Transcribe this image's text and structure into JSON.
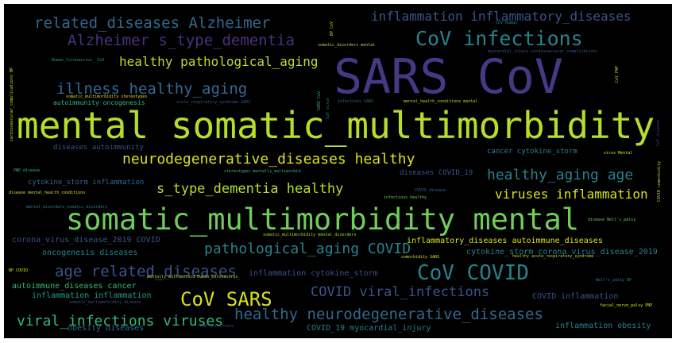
{
  "palette": {
    "purple": "#443a83",
    "violet": "#46327e",
    "indigo": "#3b528b",
    "blue": "#31688e",
    "teal": "#26828e",
    "teal2": "#1f9e89",
    "green": "#35b779",
    "lime": "#6ece58",
    "yellowgreen": "#b5de2b",
    "yellow": "#d8e219",
    "gray": "#3a4e6a"
  },
  "words": [
    {
      "text": "SARS CoV"
    },
    {
      "text": "mental somatic_multimorbidity"
    },
    {
      "text": "somatic_multimorbidity mental"
    },
    {
      "text": "CoV infections"
    },
    {
      "text": "related_diseases Alzheimer"
    },
    {
      "text": "inflammation inflammatory_diseases"
    },
    {
      "text": "Alzheimer s_type_dementia"
    },
    {
      "text": "healthy pathological_aging"
    },
    {
      "text": "illness healthy_aging"
    },
    {
      "text": "neurodegenerative_diseases healthy"
    },
    {
      "text": "healthy_aging age"
    },
    {
      "text": "s_type_dementia healthy"
    },
    {
      "text": "viruses inflammation"
    },
    {
      "text": "pathological_aging COVID"
    },
    {
      "text": "age related_diseases"
    },
    {
      "text": "CoV COVID"
    },
    {
      "text": "CoV SARS"
    },
    {
      "text": "COVID viral_infections"
    },
    {
      "text": "healthy neurodegenerative_diseases"
    },
    {
      "text": "viral_infections viruses"
    },
    {
      "text": "inflammatory_diseases autoimmune_diseases"
    },
    {
      "text": "cytokine_storm corona_virus_disease_2019"
    },
    {
      "text": "autoimmune_diseases cancer"
    },
    {
      "text": "inflammation inflammation"
    },
    {
      "text": "corona_virus_disease_2019 COVID"
    },
    {
      "text": "oncogenesis diseases"
    },
    {
      "text": "inflammation cytokine_storm"
    },
    {
      "text": "COVID inflammation"
    },
    {
      "text": "inflammation obesity"
    },
    {
      "text": "obesity diseases"
    },
    {
      "text": "COVID_19 myocardial_injury"
    },
    {
      "text": "autoimmunity oncogenesis"
    },
    {
      "text": "diseases autoimmunity"
    },
    {
      "text": "cytokine_storm inflammation"
    },
    {
      "text": "cancer cytokine_storm"
    },
    {
      "text": "diseases COVID_19"
    },
    {
      "text": "myocardial_injury cardiovascular_complications"
    },
    {
      "text": "somatic_disorders mental"
    },
    {
      "text": "somatic_multimorbidity stereotypes"
    },
    {
      "text": "Human_Coronavirus_ CoV"
    },
    {
      "text": "acute_respiratory_syndrome SARS"
    },
    {
      "text": "mental_health_conditions mental"
    },
    {
      "text": "infections SARS"
    },
    {
      "text": "stereotypes mentally_multimorbid"
    },
    {
      "text": "disease mental_health_conditions"
    },
    {
      "text": "mental_disorders somatic_disorders"
    },
    {
      "text": "infectious healthy"
    },
    {
      "text": "COVID disease"
    },
    {
      "text": "PNP disease"
    },
    {
      "text": "somatic_multimorbidity mental_disorders"
    },
    {
      "text": "disease Bell's_palsy"
    },
    {
      "text": "virus Mental"
    },
    {
      "text": "healthy acute_respiratory_syndrome"
    },
    {
      "text": "mentally_multimorbid Human_Coronavirus_"
    },
    {
      "text": "Bell's_palsy BP"
    },
    {
      "text": "CoV Human"
    },
    {
      "text": "facial_nerve_palsy PNP"
    },
    {
      "text": "PNP infectious"
    },
    {
      "text": "BP COVID"
    },
    {
      "text": "somatic_multimorbidity disease"
    },
    {
      "text": "comorbidity SARS"
    },
    {
      "text": "SARS CoV"
    },
    {
      "text": "CoV virus"
    },
    {
      "text": "BP CoV"
    },
    {
      "text": "cardiovascular_complications BP"
    },
    {
      "text": "CoV PNP"
    },
    {
      "text": "CoV disease"
    },
    {
      "text": "COVID comorbidity"
    }
  ]
}
